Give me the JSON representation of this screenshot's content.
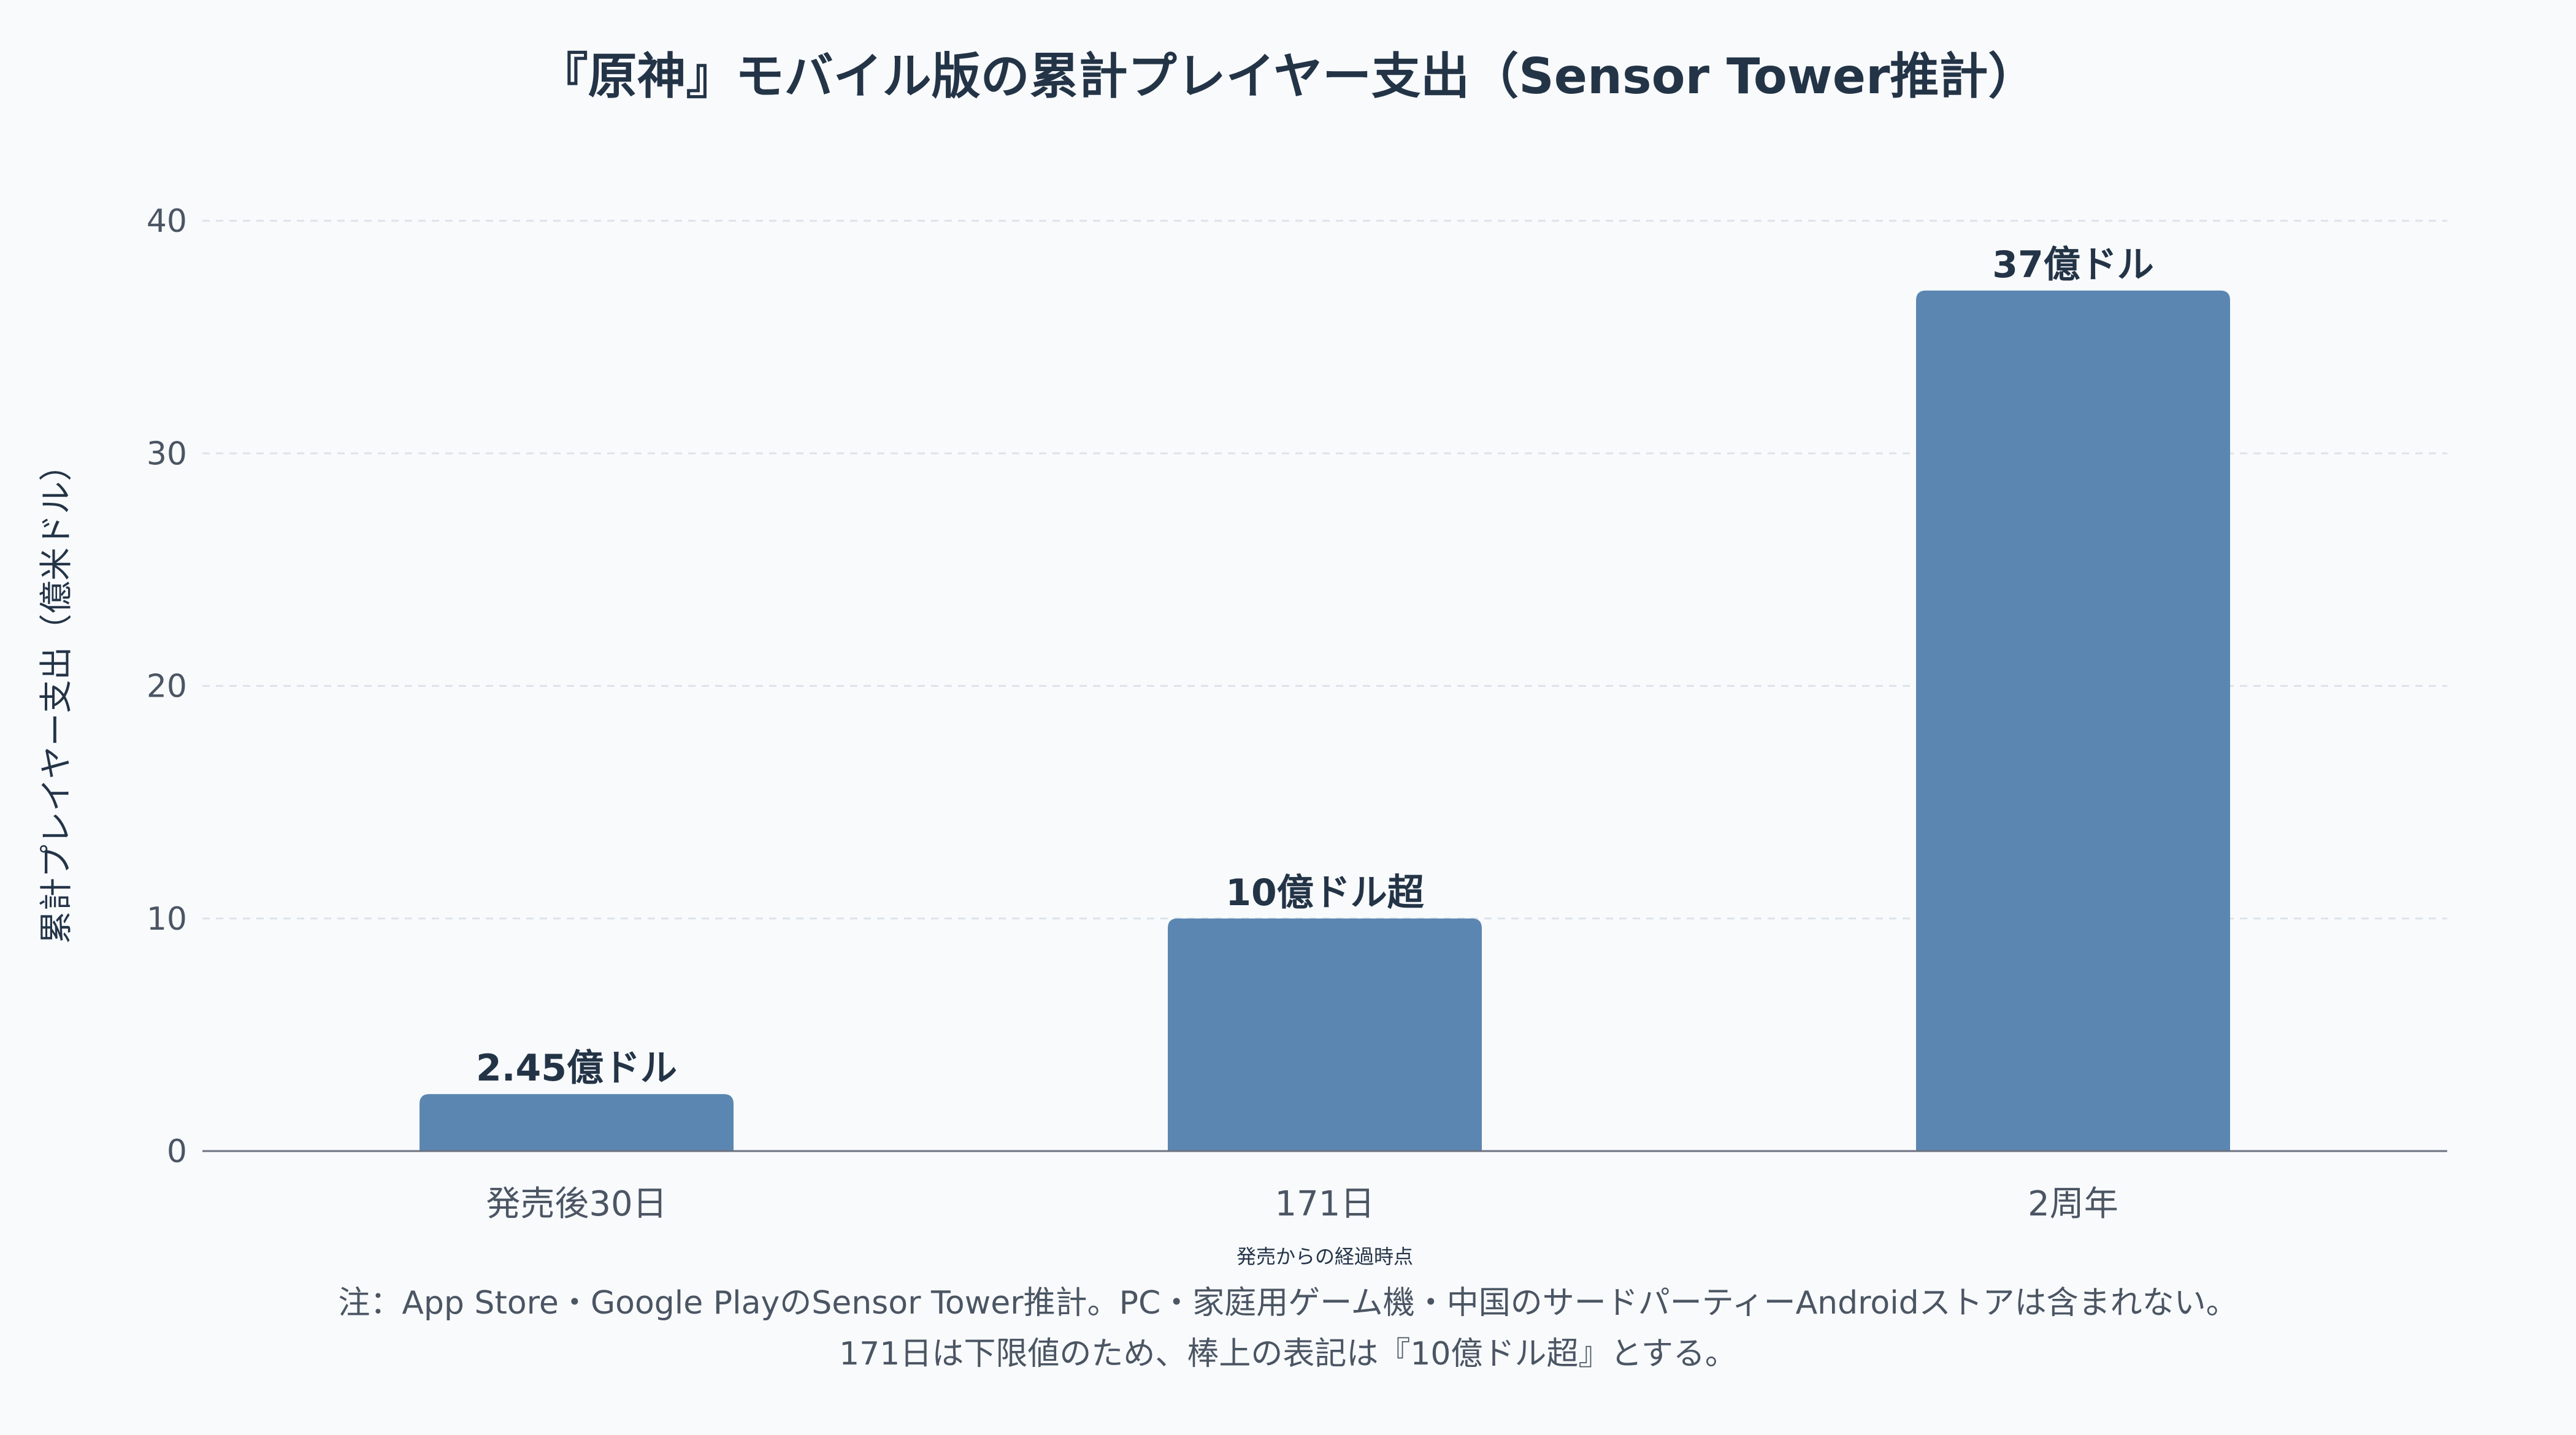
{
  "chart_data": {
    "type": "bar",
    "title": "『原神』モバイル版の累計プレイヤー支出（Sensor Tower推計）",
    "xlabel": "発売からの経過時点",
    "ylabel": "累計プレイヤー支出（億米ドル）",
    "categories": [
      "発売後30日",
      "171日",
      "2周年"
    ],
    "values": [
      2.45,
      10,
      37
    ],
    "data_labels": [
      "2.45億ドル",
      "10億ドル超",
      "37億ドル"
    ],
    "ylim": [
      0,
      40
    ],
    "yticks": [
      0,
      10,
      20,
      30,
      40
    ],
    "grid": true,
    "bar_color": "#5b86b1"
  },
  "notes": [
    "注：App Store・Google PlayのSensor Tower推計。PC・家庭用ゲーム機・中国のサードパーティーAndroidストアは含まれない。",
    "171日は下限値のため、棒上の表記は『10億ドル超』とする。"
  ]
}
